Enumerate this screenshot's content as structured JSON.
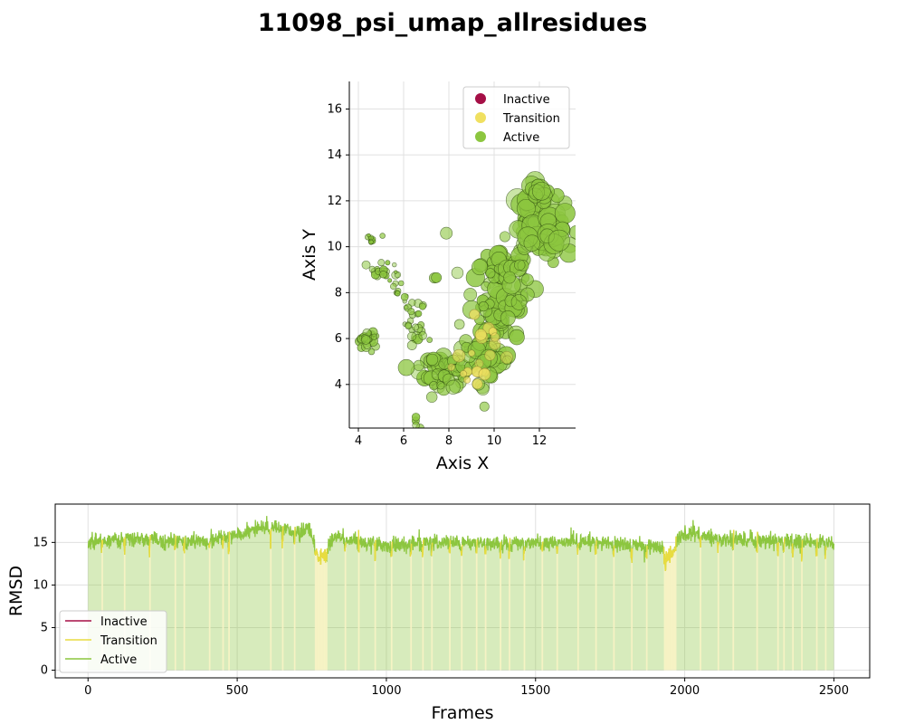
{
  "figure": {
    "title": "11098_psi_umap_allresidues"
  },
  "colors": {
    "inactive": "#a50f46",
    "transition": "#f0e060",
    "active": "#8cc63f",
    "active_dark": "#4a7a1a",
    "grid": "#e0e0e0",
    "axis": "#000000"
  },
  "chart_data": [
    {
      "type": "scatter",
      "title": "",
      "xlabel": "Axis X",
      "ylabel": "Axis Y",
      "xlim": [
        3.6,
        13.6
      ],
      "ylim": [
        2.1,
        17.2
      ],
      "xticks": [
        4,
        6,
        8,
        10,
        12
      ],
      "yticks": [
        4,
        6,
        8,
        10,
        12,
        14,
        16
      ],
      "grid": true,
      "legend": {
        "position": "top-right",
        "entries": [
          "Inactive",
          "Transition",
          "Active"
        ]
      },
      "clusters": [
        {
          "state": "Active",
          "x": 4.6,
          "y": 10.4,
          "sx": 0.12,
          "sy": 0.2,
          "n": 14,
          "size": 3
        },
        {
          "state": "Active",
          "x": 5.0,
          "y": 8.9,
          "sx": 0.35,
          "sy": 0.18,
          "n": 22,
          "size": 4
        },
        {
          "state": "Active",
          "x": 4.4,
          "y": 5.9,
          "sx": 0.22,
          "sy": 0.25,
          "n": 22,
          "size": 5
        },
        {
          "state": "Active",
          "x": 5.6,
          "y": 8.2,
          "sx": 0.3,
          "sy": 0.3,
          "n": 10,
          "size": 3
        },
        {
          "state": "Active",
          "x": 6.3,
          "y": 7.2,
          "sx": 0.3,
          "sy": 0.5,
          "n": 16,
          "size": 4
        },
        {
          "state": "Active",
          "x": 6.6,
          "y": 6.2,
          "sx": 0.3,
          "sy": 0.3,
          "n": 12,
          "size": 5
        },
        {
          "state": "Active",
          "x": 7.6,
          "y": 4.6,
          "sx": 0.6,
          "sy": 0.35,
          "n": 40,
          "size": 8
        },
        {
          "state": "Active",
          "x": 8.6,
          "y": 4.5,
          "sx": 0.5,
          "sy": 0.3,
          "n": 20,
          "size": 7
        },
        {
          "state": "Active",
          "x": 9.6,
          "y": 5.6,
          "sx": 0.5,
          "sy": 0.6,
          "n": 50,
          "size": 9
        },
        {
          "state": "Active",
          "x": 10.1,
          "y": 7.3,
          "sx": 0.5,
          "sy": 0.6,
          "n": 50,
          "size": 9
        },
        {
          "state": "Active",
          "x": 10.2,
          "y": 9.0,
          "sx": 0.45,
          "sy": 0.4,
          "n": 30,
          "size": 9
        },
        {
          "state": "Active",
          "x": 11.0,
          "y": 8.6,
          "sx": 0.4,
          "sy": 0.8,
          "n": 30,
          "size": 9
        },
        {
          "state": "Active",
          "x": 11.6,
          "y": 11.3,
          "sx": 0.4,
          "sy": 0.7,
          "n": 45,
          "size": 11
        },
        {
          "state": "Active",
          "x": 12.6,
          "y": 10.6,
          "sx": 0.45,
          "sy": 0.6,
          "n": 40,
          "size": 11
        },
        {
          "state": "Active",
          "x": 12.1,
          "y": 12.4,
          "sx": 0.25,
          "sy": 0.2,
          "n": 10,
          "size": 10
        },
        {
          "state": "Active",
          "x": 6.6,
          "y": 2.3,
          "sx": 0.06,
          "sy": 0.1,
          "n": 4,
          "size": 5
        },
        {
          "state": "Active",
          "x": 7.9,
          "y": 10.6,
          "sx": 0.02,
          "sy": 0.02,
          "n": 1,
          "size": 7
        },
        {
          "state": "Active",
          "x": 7.4,
          "y": 8.6,
          "sx": 0.05,
          "sy": 0.05,
          "n": 2,
          "size": 7
        },
        {
          "state": "Transition",
          "x": 9.0,
          "y": 4.6,
          "sx": 0.4,
          "sy": 0.25,
          "n": 10,
          "size": 6
        },
        {
          "state": "Transition",
          "x": 9.9,
          "y": 6.0,
          "sx": 0.5,
          "sy": 0.6,
          "n": 10,
          "size": 6
        }
      ]
    },
    {
      "type": "line",
      "title": "",
      "xlabel": "Frames",
      "ylabel": "RMSD",
      "xlim": [
        -110,
        2620
      ],
      "ylim": [
        -0.9,
        19.5
      ],
      "xticks": [
        0,
        500,
        1000,
        1500,
        2000,
        2500
      ],
      "yticks": [
        0,
        5,
        10,
        15
      ],
      "grid": true,
      "legend": {
        "position": "bottom-left",
        "entries": [
          "Inactive",
          "Transition",
          "Active"
        ]
      },
      "n_frames": 2500,
      "segments": [
        {
          "x": 0,
          "y": 15.0
        },
        {
          "x": 100,
          "y": 15.3
        },
        {
          "x": 200,
          "y": 15.4
        },
        {
          "x": 300,
          "y": 15.1
        },
        {
          "x": 400,
          "y": 15.2
        },
        {
          "x": 460,
          "y": 15.6
        },
        {
          "x": 520,
          "y": 16.0
        },
        {
          "x": 580,
          "y": 16.8
        },
        {
          "x": 640,
          "y": 16.6
        },
        {
          "x": 700,
          "y": 16.2
        },
        {
          "x": 740,
          "y": 16.5
        },
        {
          "x": 770,
          "y": 14.3
        },
        {
          "x": 800,
          "y": 14.6
        },
        {
          "x": 840,
          "y": 16.0
        },
        {
          "x": 880,
          "y": 15.1
        },
        {
          "x": 1000,
          "y": 14.8
        },
        {
          "x": 1200,
          "y": 15.0
        },
        {
          "x": 1400,
          "y": 14.9
        },
        {
          "x": 1550,
          "y": 15.0
        },
        {
          "x": 1650,
          "y": 15.2
        },
        {
          "x": 1760,
          "y": 14.8
        },
        {
          "x": 1900,
          "y": 14.6
        },
        {
          "x": 1940,
          "y": 14.0
        },
        {
          "x": 1980,
          "y": 15.5
        },
        {
          "x": 2020,
          "y": 16.2
        },
        {
          "x": 2100,
          "y": 15.5
        },
        {
          "x": 2300,
          "y": 15.2
        },
        {
          "x": 2500,
          "y": 15.0
        }
      ],
      "transition_ranges": [
        [
          760,
          800
        ],
        [
          1930,
          1970
        ]
      ],
      "transition_frames": [
        45,
        120,
        205,
        290,
        320,
        405,
        450,
        470,
        610,
        650,
        690,
        860,
        905,
        960,
        1015,
        1080,
        1120,
        1150,
        1210,
        1250,
        1300,
        1330,
        1380,
        1410,
        1460,
        1520,
        1570,
        1640,
        1700,
        1760,
        1820,
        1870,
        2050,
        2110,
        2160,
        2240,
        2310,
        2330,
        2360,
        2390,
        2440,
        2470
      ]
    }
  ]
}
